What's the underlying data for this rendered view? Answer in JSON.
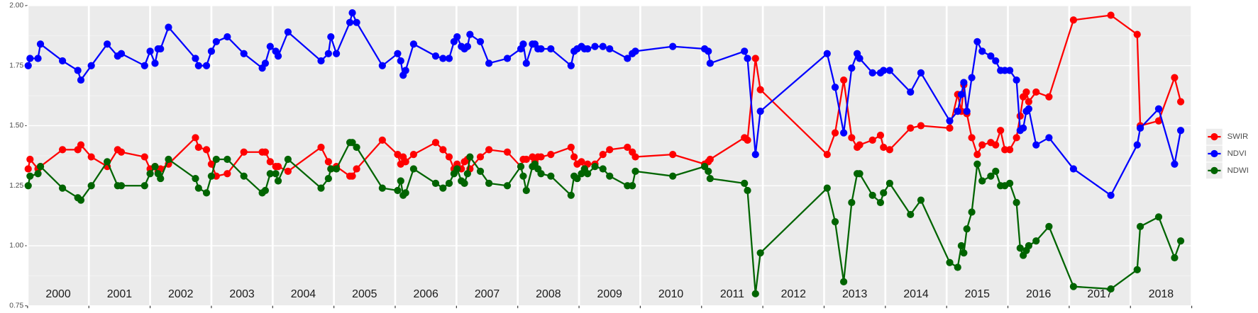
{
  "chart_data": {
    "type": "line",
    "x": [
      2000.01,
      2000.04,
      2000.17,
      2000.21,
      2000.57,
      2000.82,
      2000.87,
      2001.04,
      2001.3,
      2001.47,
      2001.53,
      2001.91,
      2002.0,
      2002.08,
      2002.13,
      2002.17,
      2002.3,
      2002.74,
      2002.79,
      2002.92,
      2003.0,
      2003.08,
      2003.26,
      2003.53,
      2003.83,
      2003.88,
      2003.96,
      2004.05,
      2004.09,
      2004.25,
      2004.79,
      2004.91,
      2004.95,
      2005.04,
      2005.26,
      2005.3,
      2005.37,
      2005.79,
      2006.04,
      2006.09,
      2006.13,
      2006.17,
      2006.3,
      2006.66,
      2006.78,
      2006.88,
      2006.96,
      2007.01,
      2007.08,
      2007.13,
      2007.18,
      2007.22,
      2007.39,
      2007.53,
      2007.83,
      2008.05,
      2008.09,
      2008.14,
      2008.24,
      2008.28,
      2008.33,
      2008.38,
      2008.54,
      2008.87,
      2008.92,
      2008.97,
      2009.04,
      2009.09,
      2009.14,
      2009.26,
      2009.39,
      2009.5,
      2009.79,
      2009.87,
      2009.92,
      2010.53,
      2011.05,
      2011.11,
      2011.14,
      2011.7,
      2011.75,
      2011.88,
      2011.96,
      2013.05,
      2013.18,
      2013.32,
      2013.45,
      2013.54,
      2013.58,
      2013.79,
      2013.92,
      2013.97,
      2014.07,
      2014.41,
      2014.58,
      2015.05,
      2015.18,
      2015.24,
      2015.28,
      2015.33,
      2015.41,
      2015.5,
      2015.58,
      2015.72,
      2015.8,
      2015.88,
      2015.95,
      2016.03,
      2016.14,
      2016.2,
      2016.25,
      2016.3,
      2016.34,
      2016.46,
      2016.67,
      2017.07,
      2017.68,
      2018.11,
      2018.16,
      2018.46,
      2018.72,
      2018.82
    ],
    "series": [
      {
        "name": "SWIR",
        "color": "#ff0000",
        "values": [
          1.32,
          1.36,
          1.32,
          1.33,
          1.4,
          1.4,
          1.42,
          1.37,
          1.33,
          1.4,
          1.39,
          1.37,
          1.32,
          1.33,
          1.31,
          1.32,
          1.34,
          1.45,
          1.41,
          1.4,
          1.34,
          1.29,
          1.3,
          1.39,
          1.39,
          1.39,
          1.35,
          1.33,
          1.33,
          1.31,
          1.41,
          1.35,
          1.32,
          1.33,
          1.29,
          1.29,
          1.32,
          1.44,
          1.38,
          1.34,
          1.37,
          1.35,
          1.38,
          1.43,
          1.4,
          1.37,
          1.32,
          1.34,
          1.32,
          1.35,
          1.36,
          1.32,
          1.37,
          1.4,
          1.39,
          1.33,
          1.36,
          1.36,
          1.37,
          1.35,
          1.37,
          1.37,
          1.38,
          1.41,
          1.37,
          1.34,
          1.35,
          1.32,
          1.34,
          1.34,
          1.38,
          1.4,
          1.41,
          1.39,
          1.37,
          1.38,
          1.34,
          1.35,
          1.36,
          1.45,
          1.44,
          1.78,
          1.65,
          1.38,
          1.47,
          1.69,
          1.45,
          1.41,
          1.42,
          1.44,
          1.46,
          1.41,
          1.4,
          1.49,
          1.5,
          1.49,
          1.63,
          1.56,
          1.67,
          1.55,
          1.45,
          1.38,
          1.42,
          1.43,
          1.42,
          1.48,
          1.4,
          1.4,
          1.45,
          1.54,
          1.62,
          1.64,
          1.6,
          1.64,
          1.62,
          1.94,
          1.96,
          1.88,
          1.5,
          1.52,
          1.7,
          1.6
        ]
      },
      {
        "name": "NDVI",
        "color": "#0000ff",
        "values": [
          1.75,
          1.78,
          1.78,
          1.84,
          1.77,
          1.73,
          1.69,
          1.75,
          1.84,
          1.79,
          1.8,
          1.75,
          1.81,
          1.76,
          1.82,
          1.82,
          1.91,
          1.78,
          1.75,
          1.75,
          1.81,
          1.85,
          1.87,
          1.8,
          1.74,
          1.76,
          1.83,
          1.81,
          1.79,
          1.89,
          1.77,
          1.8,
          1.87,
          1.8,
          1.93,
          1.97,
          1.93,
          1.75,
          1.8,
          1.77,
          1.71,
          1.73,
          1.84,
          1.79,
          1.78,
          1.78,
          1.85,
          1.87,
          1.83,
          1.82,
          1.83,
          1.88,
          1.85,
          1.76,
          1.78,
          1.82,
          1.84,
          1.76,
          1.84,
          1.84,
          1.82,
          1.82,
          1.82,
          1.75,
          1.81,
          1.82,
          1.83,
          1.82,
          1.82,
          1.83,
          1.83,
          1.82,
          1.78,
          1.8,
          1.81,
          1.83,
          1.82,
          1.81,
          1.76,
          1.81,
          1.78,
          1.38,
          1.56,
          1.8,
          1.66,
          1.47,
          1.74,
          1.8,
          1.78,
          1.72,
          1.72,
          1.73,
          1.73,
          1.64,
          1.72,
          1.52,
          1.56,
          1.63,
          1.68,
          1.56,
          1.7,
          1.85,
          1.81,
          1.79,
          1.77,
          1.73,
          1.73,
          1.73,
          1.69,
          1.48,
          1.49,
          1.56,
          1.57,
          1.42,
          1.45,
          1.32,
          1.21,
          1.42,
          1.49,
          1.57,
          1.34,
          1.48
        ]
      },
      {
        "name": "NDWI",
        "color": "#006400",
        "values": [
          1.25,
          1.29,
          1.3,
          1.33,
          1.24,
          1.2,
          1.19,
          1.25,
          1.35,
          1.25,
          1.25,
          1.25,
          1.3,
          1.33,
          1.3,
          1.28,
          1.36,
          1.28,
          1.24,
          1.22,
          1.29,
          1.36,
          1.36,
          1.29,
          1.22,
          1.23,
          1.3,
          1.3,
          1.27,
          1.36,
          1.24,
          1.28,
          1.32,
          1.32,
          1.43,
          1.43,
          1.41,
          1.24,
          1.23,
          1.27,
          1.21,
          1.22,
          1.32,
          1.26,
          1.24,
          1.26,
          1.3,
          1.32,
          1.27,
          1.26,
          1.3,
          1.37,
          1.31,
          1.26,
          1.25,
          1.33,
          1.29,
          1.23,
          1.33,
          1.34,
          1.32,
          1.3,
          1.29,
          1.21,
          1.29,
          1.28,
          1.3,
          1.32,
          1.3,
          1.33,
          1.32,
          1.29,
          1.25,
          1.25,
          1.31,
          1.29,
          1.33,
          1.31,
          1.28,
          1.26,
          1.23,
          0.8,
          0.97,
          1.24,
          1.1,
          0.85,
          1.18,
          1.3,
          1.3,
          1.21,
          1.18,
          1.22,
          1.26,
          1.13,
          1.19,
          0.93,
          0.91,
          1.0,
          0.97,
          1.07,
          1.14,
          1.34,
          1.27,
          1.29,
          1.31,
          1.25,
          1.25,
          1.26,
          1.18,
          0.99,
          0.96,
          0.98,
          1.0,
          1.02,
          1.08,
          0.83,
          0.82,
          0.9,
          1.08,
          1.12,
          0.95,
          1.02
        ]
      }
    ],
    "xlim": [
      2000,
      2019
    ],
    "xticks": [
      2000,
      2001,
      2002,
      2003,
      2004,
      2005,
      2006,
      2007,
      2008,
      2009,
      2010,
      2011,
      2012,
      2013,
      2014,
      2015,
      2016,
      2017,
      2018,
      2019
    ],
    "annotations": [
      "2000",
      "2001",
      "2002",
      "2003",
      "2004",
      "2005",
      "2006",
      "2007",
      "2008",
      "2009",
      "2010",
      "2011",
      "2012",
      "2013",
      "2014",
      "2015",
      "2016",
      "2017",
      "2018"
    ],
    "ylim": [
      0.75,
      2.0
    ],
    "yticks": [
      {
        "value": 0.75,
        "label": "0.75"
      },
      {
        "value": 1.0,
        "label": "1.00"
      },
      {
        "value": 1.25,
        "label": "1.25"
      },
      {
        "value": 1.5,
        "label": "1.50"
      },
      {
        "value": 1.75,
        "label": "1.75"
      },
      {
        "value": 2.0,
        "label": "2.00"
      }
    ],
    "grid": true,
    "legend": "right"
  }
}
